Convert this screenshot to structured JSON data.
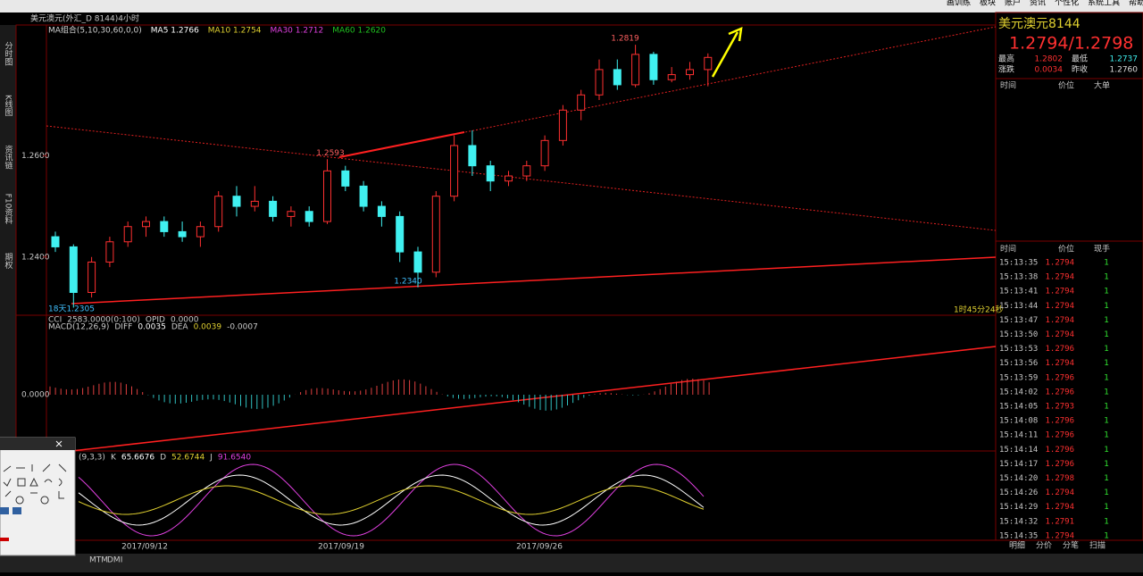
{
  "toolbar": {
    "menu": [
      "画训练",
      "板块",
      "账户",
      "资讯",
      "个性化",
      "系统工具",
      "帮助"
    ]
  },
  "title_bar": "美元澳元(外汇_D 8144)4小时",
  "left_tabs": [
    "分时图",
    "K线图",
    "资讯链",
    "F10资料",
    "期权"
  ],
  "ma_legend": [
    {
      "text": "MA组合(5,10,30,60,0,0)",
      "color": "#d0d0d0"
    },
    {
      "text": "MA5 1.2766",
      "color": "#ffffff"
    },
    {
      "text": "MA10 1.2754",
      "color": "#e0d030"
    },
    {
      "text": "MA30 1.2712",
      "color": "#e040e0"
    },
    {
      "text": "MA60 1.2620",
      "color": "#20c020"
    }
  ],
  "kline": {
    "ylim": [
      1.2285,
      1.2858
    ],
    "yticks": [
      {
        "value": 1.26,
        "label": "1.2600"
      },
      {
        "value": 1.24,
        "label": "1.2400"
      }
    ],
    "notes": [
      {
        "text": "1.2819",
        "price": 1.2819
      },
      {
        "text": "1.2593",
        "price": 1.2593
      },
      {
        "text": "1.2340",
        "price": 1.234
      }
    ],
    "low_note": "18天1.2305",
    "countdown": "1时45分24秒",
    "ohlc": [
      [
        1.244,
        1.245,
        1.241,
        1.242
      ],
      [
        1.242,
        1.2425,
        1.23,
        1.233
      ],
      [
        1.233,
        1.24,
        1.232,
        1.239
      ],
      [
        1.239,
        1.244,
        1.238,
        1.243
      ],
      [
        1.243,
        1.247,
        1.242,
        1.246
      ],
      [
        1.246,
        1.248,
        1.244,
        1.247
      ],
      [
        1.247,
        1.248,
        1.244,
        1.245
      ],
      [
        1.245,
        1.247,
        1.243,
        1.244
      ],
      [
        1.244,
        1.247,
        1.242,
        1.246
      ],
      [
        1.246,
        1.253,
        1.245,
        1.252
      ],
      [
        1.252,
        1.254,
        1.248,
        1.25
      ],
      [
        1.25,
        1.254,
        1.249,
        1.251
      ],
      [
        1.251,
        1.252,
        1.247,
        1.248
      ],
      [
        1.248,
        1.25,
        1.246,
        1.249
      ],
      [
        1.249,
        1.25,
        1.246,
        1.247
      ],
      [
        1.247,
        1.2593,
        1.2465,
        1.257
      ],
      [
        1.257,
        1.258,
        1.253,
        1.254
      ],
      [
        1.254,
        1.255,
        1.249,
        1.25
      ],
      [
        1.25,
        1.251,
        1.246,
        1.248
      ],
      [
        1.248,
        1.249,
        1.239,
        1.241
      ],
      [
        1.241,
        1.242,
        1.234,
        1.237
      ],
      [
        1.237,
        1.253,
        1.236,
        1.252
      ],
      [
        1.252,
        1.264,
        1.251,
        1.262
      ],
      [
        1.262,
        1.265,
        1.256,
        1.258
      ],
      [
        1.258,
        1.259,
        1.253,
        1.255
      ],
      [
        1.255,
        1.257,
        1.254,
        1.256
      ],
      [
        1.256,
        1.259,
        1.255,
        1.258
      ],
      [
        1.258,
        1.264,
        1.257,
        1.263
      ],
      [
        1.263,
        1.27,
        1.262,
        1.269
      ],
      [
        1.269,
        1.273,
        1.267,
        1.272
      ],
      [
        1.272,
        1.279,
        1.271,
        1.277
      ],
      [
        1.277,
        1.279,
        1.273,
        1.274
      ],
      [
        1.274,
        1.2819,
        1.2735,
        1.28
      ],
      [
        1.28,
        1.2805,
        1.274,
        1.275
      ],
      [
        1.275,
        1.2775,
        1.2745,
        1.276
      ],
      [
        1.276,
        1.2785,
        1.275,
        1.277
      ],
      [
        1.277,
        1.2802,
        1.2737,
        1.2794
      ]
    ]
  },
  "macd": {
    "header": [
      "CCI",
      "2583.0000(0:100)",
      "OPID",
      "0.0000"
    ],
    "legend": [
      "MACD(12,26,9)",
      "DIFF",
      "0.0035",
      "DEA",
      "0.0039",
      "-0.0007"
    ],
    "zero": "0.0000"
  },
  "kdj": {
    "legend": [
      "(9,3,3)",
      "K",
      "65.6676",
      "D",
      "52.6744",
      "J",
      "91.6540"
    ]
  },
  "dates": [
    "2017/09/12",
    "2017/09/19",
    "2017/09/26"
  ],
  "bottom_tabs": [
    "MTM",
    "DMI"
  ],
  "quote": {
    "name": "美元澳元",
    "code": "8144",
    "price": "1.2794/1.2798",
    "stats": [
      [
        "最高",
        "1.2802",
        "最低",
        "1.2737"
      ],
      [
        "涨跌",
        "0.0034",
        "昨收",
        "1.2760"
      ]
    ],
    "big_header": [
      "时间",
      "价位",
      "大单"
    ],
    "tick_header": [
      "时间",
      "价位",
      "现手"
    ],
    "ticks": [
      [
        "15:13:35",
        "1.2794",
        "1"
      ],
      [
        "15:13:38",
        "1.2794",
        "1"
      ],
      [
        "15:13:41",
        "1.2794",
        "1"
      ],
      [
        "15:13:44",
        "1.2794",
        "1"
      ],
      [
        "15:13:47",
        "1.2794",
        "1"
      ],
      [
        "15:13:50",
        "1.2794",
        "1"
      ],
      [
        "15:13:53",
        "1.2796",
        "1"
      ],
      [
        "15:13:56",
        "1.2794",
        "1"
      ],
      [
        "15:13:59",
        "1.2796",
        "1"
      ],
      [
        "15:14:02",
        "1.2796",
        "1"
      ],
      [
        "15:14:05",
        "1.2793",
        "1"
      ],
      [
        "15:14:08",
        "1.2796",
        "1"
      ],
      [
        "15:14:11",
        "1.2796",
        "1"
      ],
      [
        "15:14:14",
        "1.2796",
        "1"
      ],
      [
        "15:14:17",
        "1.2796",
        "1"
      ],
      [
        "15:14:20",
        "1.2798",
        "1"
      ],
      [
        "15:14:26",
        "1.2794",
        "1"
      ],
      [
        "15:14:29",
        "1.2794",
        "1"
      ],
      [
        "15:14:32",
        "1.2791",
        "1"
      ],
      [
        "15:14:35",
        "1.2794",
        "1"
      ]
    ],
    "tabs": [
      "明细",
      "分价",
      "分笔",
      "扫描"
    ]
  }
}
